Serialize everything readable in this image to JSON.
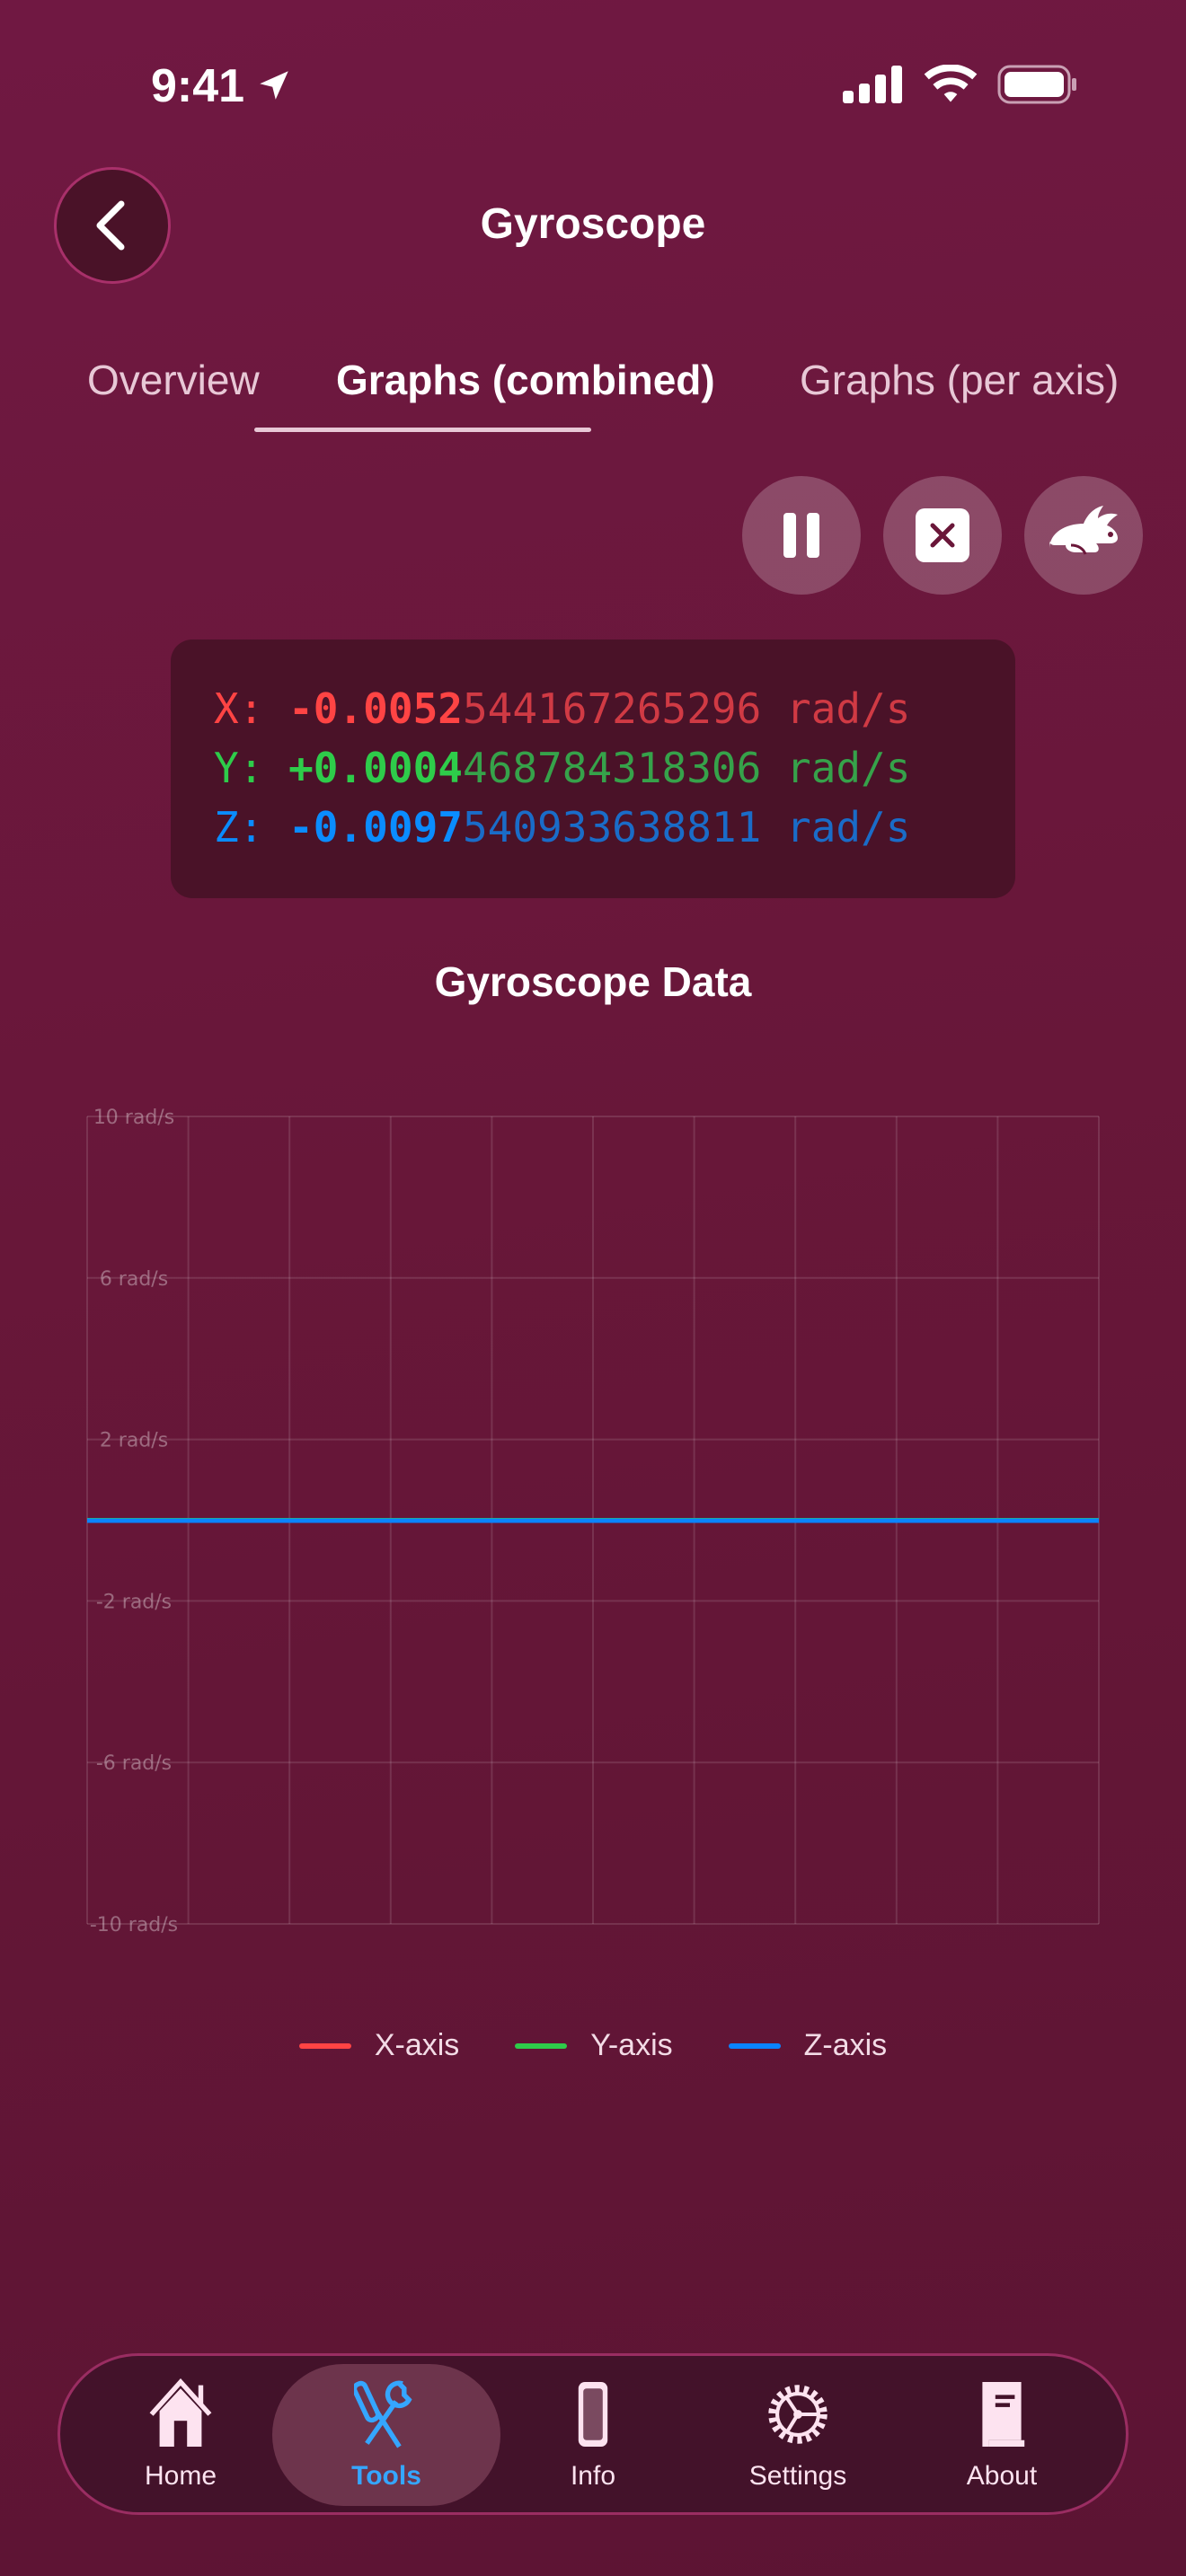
{
  "status": {
    "time": "9:41"
  },
  "header": {
    "title": "Gyroscope",
    "back_icon": "chevron-left-icon"
  },
  "tabs": [
    {
      "label": "Overview"
    },
    {
      "label": "Graphs (combined)",
      "active": true
    },
    {
      "label": "Graphs (per axis)"
    }
  ],
  "controls": {
    "pause_icon": "pause-icon",
    "clear_icon": "clear-icon",
    "speed_icon": "rabbit-icon"
  },
  "readout": {
    "x": {
      "label": "X:",
      "main": "-0.0052",
      "rest": "544167265296",
      "unit": "rad/s"
    },
    "y": {
      "label": "Y:",
      "main": "+0.0004",
      "rest": "468784318306",
      "unit": "rad/s"
    },
    "z": {
      "label": "Z:",
      "main": "-0.0097",
      "rest": "540933638811",
      "unit": "rad/s"
    }
  },
  "colors": {
    "x": "#ff4444",
    "y": "#2ecc4a",
    "z": "#0a84ff",
    "background": "#6a1739",
    "accent": "#35a6ff"
  },
  "chart_data": {
    "type": "line",
    "title": "Gyroscope Data",
    "ylim": [
      -10,
      10
    ],
    "yticks": [
      "10 rad/s",
      "6 rad/s",
      "2 rad/s",
      "-2 rad/s",
      "-6 rad/s",
      "-10 rad/s"
    ],
    "grid": true,
    "legend": "bottom",
    "series": [
      {
        "name": "X-axis",
        "color": "#ff4444",
        "values": [
          -0.0053,
          -0.0053,
          -0.0053,
          -0.0053,
          -0.0053,
          -0.0053,
          -0.0053,
          -0.0053,
          -0.0053,
          -0.0053,
          -0.0053
        ]
      },
      {
        "name": "Y-axis",
        "color": "#2ecc4a",
        "values": [
          0.0004,
          0.0004,
          0.0004,
          0.0004,
          0.0004,
          0.0004,
          0.0004,
          0.0004,
          0.0004,
          0.0004,
          0.0004
        ]
      },
      {
        "name": "Z-axis",
        "color": "#0a84ff",
        "values": [
          -0.0098,
          -0.0098,
          -0.0098,
          -0.0098,
          -0.0098,
          -0.0098,
          -0.0098,
          -0.0098,
          -0.0098,
          -0.0098,
          -0.0098
        ]
      }
    ]
  },
  "nav": [
    {
      "label": "Home",
      "icon": "home-icon"
    },
    {
      "label": "Tools",
      "icon": "tools-icon",
      "active": true
    },
    {
      "label": "Info",
      "icon": "phone-icon"
    },
    {
      "label": "Settings",
      "icon": "gear-icon"
    },
    {
      "label": "About",
      "icon": "book-icon"
    }
  ]
}
